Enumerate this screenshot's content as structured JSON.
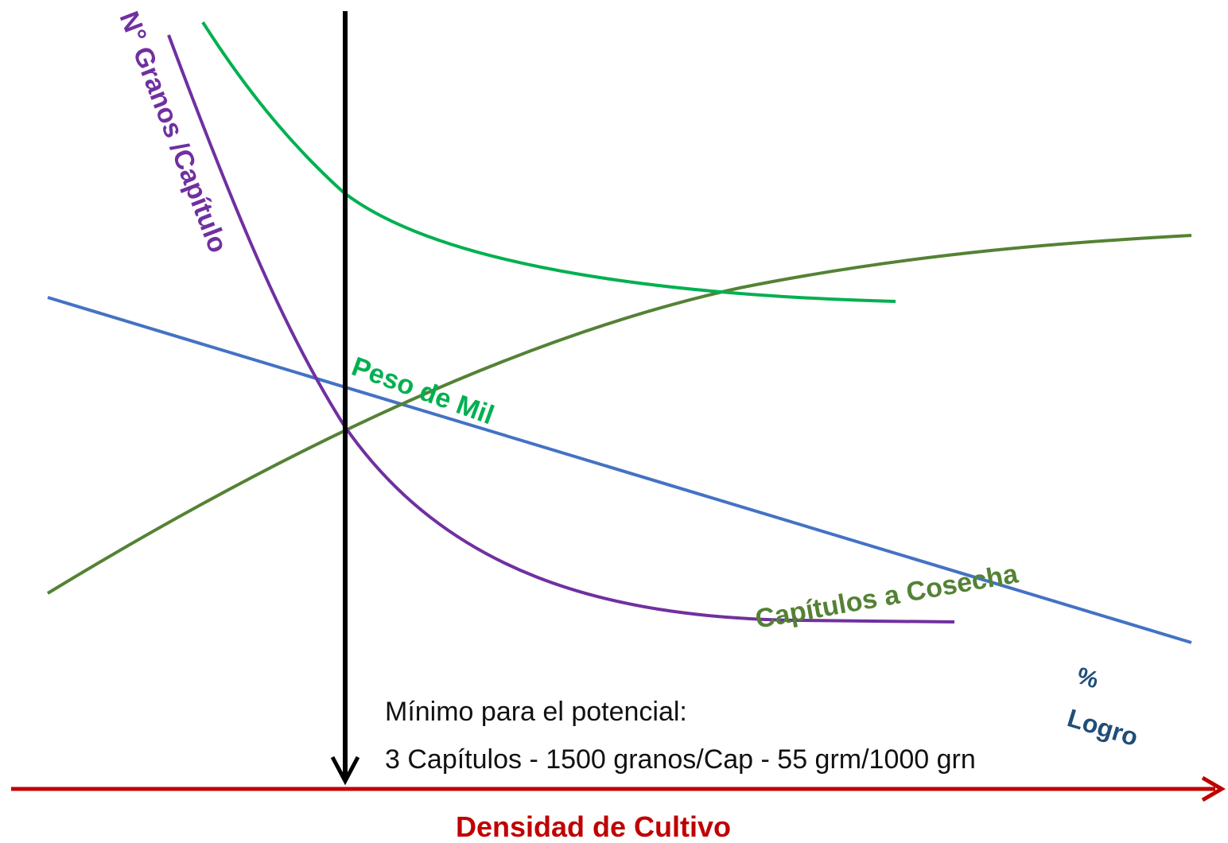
{
  "colors": {
    "granos": "#7030A0",
    "peso": "#00B050",
    "capitulos": "#548235",
    "logro_line": "#4472C4",
    "logro_text": "#1F4E79",
    "axis": "#C00000",
    "marker": "#000000"
  },
  "labels": {
    "granos": "N° Granos /Capítulo",
    "peso": "Peso de Mil",
    "capitulos": "Capítulos a Cosecha",
    "logro_pct": "%",
    "logro_word": "Logro",
    "x_axis": "Densidad de Cultivo"
  },
  "note": {
    "line1": "Mínimo para el potencial:",
    "line2": "3 Capítulos - 1500 granos/Cap - 55 grm/1000 grn"
  }
}
